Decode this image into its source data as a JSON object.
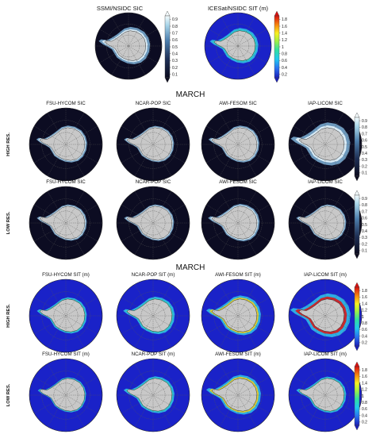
{
  "top": {
    "panels": [
      {
        "title": "SSMI/NSIDC SIC",
        "kind": "sic",
        "level": 0.7
      },
      {
        "title": "ICESat/NSIDC SIT (m)",
        "kind": "sit",
        "level": 0.5
      }
    ],
    "sic_ticks": [
      "0.9",
      "0.8",
      "0.7",
      "0.6",
      "0.5",
      "0.4",
      "0.3",
      "0.2",
      "0.1"
    ],
    "sit_ticks": [
      "1.8",
      "1.6",
      "1.4",
      "1.2",
      "1",
      "0.8",
      "0.6",
      "0.4",
      "0.2"
    ]
  },
  "section1": {
    "header": "MARCH",
    "rows": [
      {
        "label": "HIGH RES.",
        "models": [
          "FSU-HYCOM SIC",
          "NCAR-POP SIC",
          "AWI-FESOM SIC",
          "IAP-LICOM SIC"
        ],
        "levels": [
          0.35,
          0.3,
          0.35,
          0.9
        ]
      },
      {
        "label": "LOW RES.",
        "models": [
          "FSU-HYCOM SIC",
          "NCAR-POP SIC",
          "AWI-FESOM SIC",
          "IAP-LICOM SIC"
        ],
        "levels": [
          0.3,
          0.3,
          0.4,
          0.3
        ]
      }
    ],
    "ticks": [
      "0.9",
      "0.8",
      "0.7",
      "0.6",
      "0.5",
      "0.4",
      "0.3",
      "0.2",
      "0.1"
    ]
  },
  "section2": {
    "header": "MARCH",
    "rows": [
      {
        "label": "HIGH RES.",
        "models": [
          "FSU-HYCOM SIT (m)",
          "NCAR-POP SIT (m)",
          "AWI-FESOM SIT (m)",
          "IAP-LICOM SIT (m)"
        ],
        "levels": [
          0.3,
          0.4,
          0.6,
          0.95
        ]
      },
      {
        "label": "LOW RES.",
        "models": [
          "FSU-HYCOM SIT (m)",
          "NCAR-POP  SIT (m)",
          "AWI-FESOM SIT (m)",
          "IAP-LICOM SIT (m)"
        ],
        "levels": [
          0.2,
          0.35,
          0.6,
          0.3
        ]
      }
    ],
    "ticks": [
      "1.8",
      "1.6",
      "1.4",
      "1.2",
      "1",
      "0.8",
      "0.6",
      "0.4",
      "0.2"
    ]
  },
  "chart_data": {
    "type": "heatmap",
    "description_units": {
      "sic_range": [
        0.1,
        0.9
      ],
      "sit_range_m": [
        0.2,
        1.8
      ]
    }
  },
  "colors": {
    "sic_ocean": "#0c0c22",
    "sit_ocean": "#1a22c8",
    "land": "#c8c8c8"
  }
}
